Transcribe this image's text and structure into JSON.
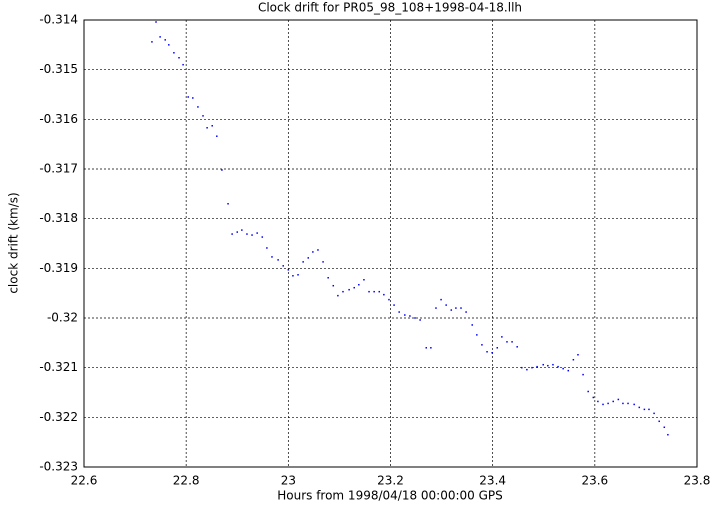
{
  "chart_data": {
    "type": "scatter",
    "title": "Clock drift for PR05_98_108+1998-04-18.llh",
    "x_label": "Hours from 1998/04/18 00:00:00 GPS",
    "y_label": "clock drift (km/s)",
    "color": "#0000ff",
    "grid": true,
    "xlim": [
      22.6,
      23.8
    ],
    "ylim": [
      -0.323,
      -0.314
    ],
    "xticks": [
      22.6,
      22.8,
      23,
      23.2,
      23.4,
      23.6,
      23.8
    ],
    "yticks": [
      -0.314,
      -0.315,
      -0.316,
      -0.317,
      -0.318,
      -0.319,
      -0.32,
      -0.321,
      -0.322,
      -0.323
    ],
    "x": [
      22.733,
      22.741,
      22.749,
      22.759,
      22.766,
      22.776,
      22.786,
      22.794,
      22.804,
      22.813,
      22.823,
      22.833,
      22.841,
      22.851,
      22.86,
      22.87,
      22.882,
      22.89,
      22.9,
      22.909,
      22.919,
      22.929,
      22.939,
      22.949,
      22.958,
      22.968,
      22.98,
      22.99,
      23.0,
      23.009,
      23.019,
      23.029,
      23.039,
      23.048,
      23.058,
      23.068,
      23.078,
      23.088,
      23.097,
      23.107,
      23.119,
      23.129,
      23.138,
      23.148,
      23.158,
      23.168,
      23.178,
      23.187,
      23.197,
      23.207,
      23.217,
      23.228,
      23.238,
      23.248,
      23.258,
      23.27,
      23.279,
      23.289,
      23.299,
      23.309,
      23.319,
      23.328,
      23.338,
      23.348,
      23.36,
      23.369,
      23.379,
      23.389,
      23.399,
      23.409,
      23.418,
      23.428,
      23.438,
      23.448,
      23.457,
      23.467,
      23.477,
      23.487,
      23.499,
      23.508,
      23.518,
      23.528,
      23.538,
      23.548,
      23.558,
      23.567,
      23.577,
      23.587,
      23.597,
      23.606,
      23.616,
      23.626,
      23.636,
      23.646,
      23.655,
      23.665,
      23.677,
      23.687,
      23.697,
      23.706,
      23.716,
      23.726,
      23.736,
      23.743
    ],
    "values": [
      -0.31444,
      -0.31404,
      -0.31434,
      -0.3144,
      -0.3145,
      -0.31466,
      -0.31476,
      -0.3149,
      -0.31555,
      -0.31557,
      -0.31575,
      -0.31593,
      -0.31617,
      -0.31613,
      -0.31634,
      -0.31702,
      -0.3177,
      -0.31831,
      -0.31827,
      -0.31823,
      -0.31831,
      -0.31833,
      -0.31829,
      -0.31837,
      -0.31859,
      -0.31877,
      -0.31883,
      -0.31895,
      -0.31903,
      -0.31915,
      -0.31913,
      -0.31887,
      -0.31879,
      -0.31867,
      -0.31863,
      -0.31887,
      -0.31919,
      -0.31935,
      -0.31955,
      -0.31947,
      -0.31943,
      -0.31939,
      -0.31933,
      -0.31923,
      -0.31947,
      -0.31947,
      -0.31947,
      -0.31953,
      -0.31963,
      -0.31974,
      -0.31988,
      -0.31994,
      -0.31996,
      -0.32,
      -0.32004,
      -0.3206,
      -0.3206,
      -0.3198,
      -0.31963,
      -0.31974,
      -0.31984,
      -0.3198,
      -0.3198,
      -0.31988,
      -0.32014,
      -0.32034,
      -0.32054,
      -0.32068,
      -0.3207,
      -0.3206,
      -0.32038,
      -0.32048,
      -0.32048,
      -0.32058,
      -0.321,
      -0.32104,
      -0.321,
      -0.32098,
      -0.32094,
      -0.32096,
      -0.32094,
      -0.32098,
      -0.32102,
      -0.32106,
      -0.32084,
      -0.32074,
      -0.32114,
      -0.32148,
      -0.3216,
      -0.32168,
      -0.32174,
      -0.32172,
      -0.32168,
      -0.32164,
      -0.32172,
      -0.32172,
      -0.32174,
      -0.3218,
      -0.32184,
      -0.32184,
      -0.32192,
      -0.32208,
      -0.3222,
      -0.32235
    ]
  }
}
